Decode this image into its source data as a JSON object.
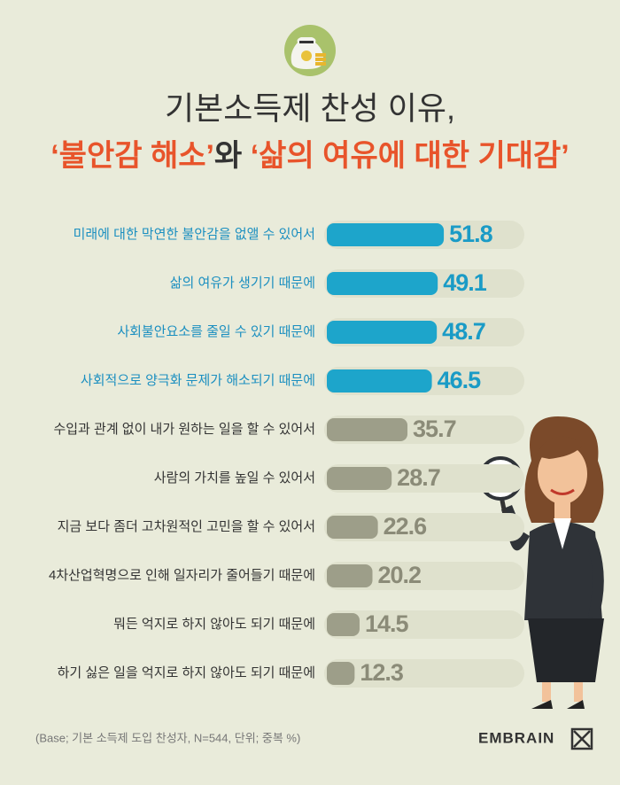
{
  "chart_data": {
    "type": "bar",
    "orientation": "horizontal",
    "title_line1": "기본소득제 찬성 이유,",
    "title_line2_parts": [
      "‘불안감 해소’",
      "와 ",
      "‘삶의 여유에 대한 기대감’"
    ],
    "title_line2_colors": [
      "#e8542b",
      "#333333",
      "#e8542b"
    ],
    "categories": [
      "미래에 대한 막연한 불안감을 없앨 수 있어서",
      "삶의 여유가 생기기 때문에",
      "사회불안요소를 줄일 수 있기 때문에",
      "사회적으로 양극화 문제가 해소되기 때문에",
      "수입과 관계 없이 내가 원하는 일을 할 수 있어서",
      "사람의 가치를 높일 수 있어서",
      "지금 보다 좀더 고차원적인 고민을 할 수 있어서",
      "4차산업혁명으로 인해 일자리가 줄어들기 때문에",
      "뭐든 억지로 하지 않아도 되기 때문에",
      "하기 싫은 일을 억지로 하지 않아도 되기 때문에"
    ],
    "values": [
      51.8,
      49.1,
      48.7,
      46.5,
      35.7,
      28.7,
      22.6,
      20.2,
      14.5,
      12.3
    ],
    "colors": [
      "#1da5cb",
      "#1da5cb",
      "#1da5cb",
      "#1da5cb",
      "#9d9e89",
      "#9d9e89",
      "#9d9e89",
      "#9d9e89",
      "#9d9e89",
      "#9d9e89"
    ],
    "label_colors": [
      "#1b8fc0",
      "#1b8fc0",
      "#1b8fc0",
      "#1b8fc0",
      "#333333",
      "#333333",
      "#333333",
      "#333333",
      "#333333",
      "#333333"
    ],
    "value_label_colors": [
      "#1a9bc6",
      "#1a9bc6",
      "#1a9bc6",
      "#1a9bc6",
      "#8b8b78",
      "#8b8b78",
      "#8b8b78",
      "#8b8b78",
      "#8b8b78",
      "#8b8b78"
    ],
    "footnote": "(Base; 기본 소득제 도입 찬성자, N=544, 단위; 중복 %)",
    "brand": "EMBRAIN"
  }
}
